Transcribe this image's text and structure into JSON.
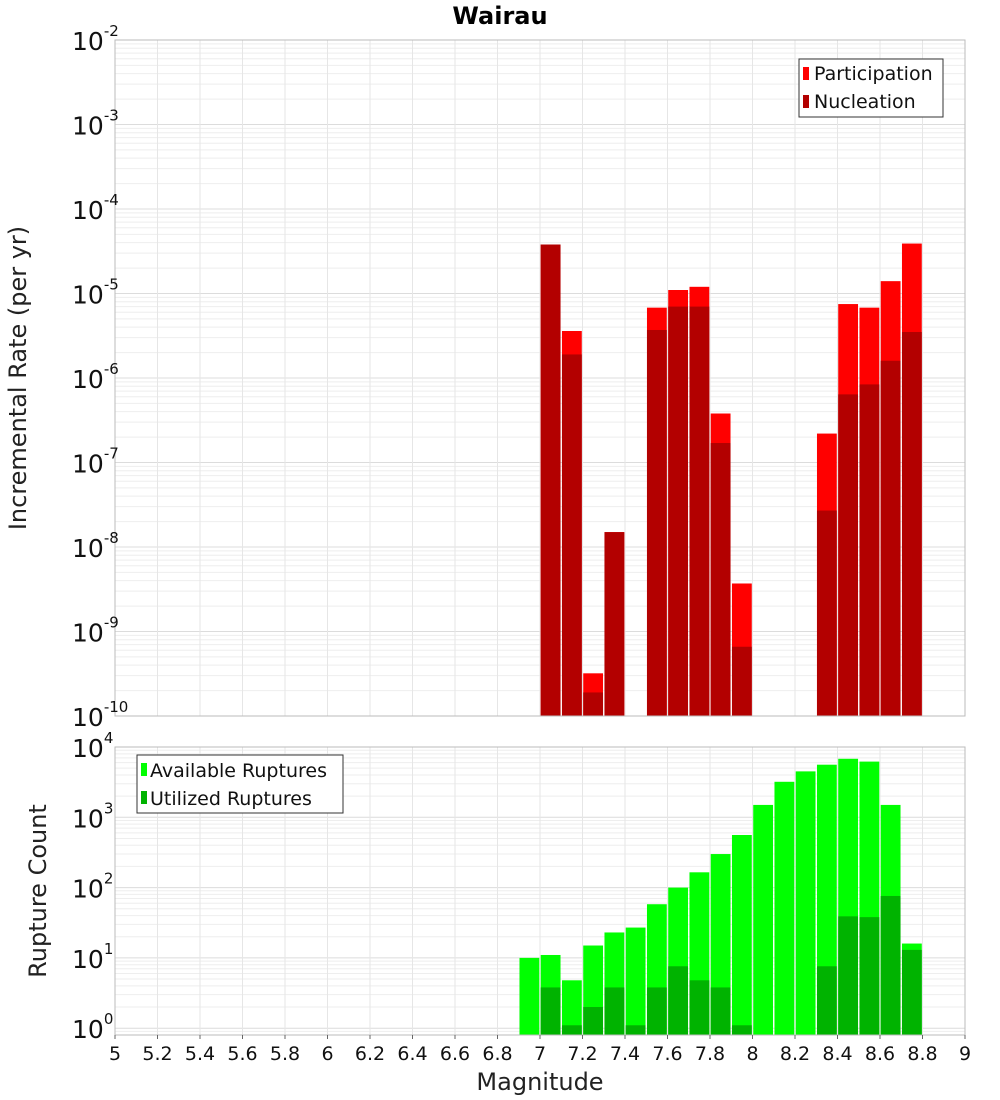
{
  "chart_data": [
    {
      "type": "bar",
      "title": "Wairau",
      "ylabel": "Incremental Rate (per yr)",
      "yscale": "log",
      "ylim": [
        1e-10,
        0.01
      ],
      "xlim": [
        5,
        9
      ],
      "grid": true,
      "legend": "top-right",
      "ytick_exponents": [
        "-10",
        "-9",
        "-8",
        "-7",
        "-6",
        "-5",
        "-4",
        "-3",
        "-2"
      ],
      "x": [
        7.05,
        7.15,
        7.25,
        7.35,
        7.55,
        7.65,
        7.75,
        7.85,
        7.95,
        8.35,
        8.45,
        8.55,
        8.65,
        8.75
      ],
      "series": [
        {
          "name": "Participation",
          "color": "#ff0000",
          "values": [
            3.8e-05,
            3.6e-06,
            3.2e-10,
            1.5e-08,
            6.8e-06,
            1.1e-05,
            1.2e-05,
            3.8e-07,
            3.7e-09,
            2.2e-07,
            7.5e-06,
            6.8e-06,
            1.4e-05,
            3.9e-05
          ]
        },
        {
          "name": "Nucleation",
          "color": "#b30000",
          "values": [
            3.8e-05,
            1.9e-06,
            1.9e-10,
            1.5e-08,
            3.7e-06,
            7e-06,
            7e-06,
            1.7e-07,
            6.6e-10,
            2.7e-08,
            6.4e-07,
            8.4e-07,
            1.6e-06,
            3.5e-06
          ]
        }
      ]
    },
    {
      "type": "bar",
      "ylabel": "Rupture Count",
      "xlabel": "Magnitude",
      "yscale": "log",
      "ylim": [
        0.8,
        10000
      ],
      "xlim": [
        5,
        9
      ],
      "grid": true,
      "legend": "top-left",
      "ytick_exponents": [
        "0",
        "1",
        "2",
        "3",
        "4"
      ],
      "xticks": [
        "5",
        "5.2",
        "5.4",
        "5.6",
        "5.8",
        "6",
        "6.2",
        "6.4",
        "6.6",
        "6.8",
        "7",
        "7.2",
        "7.4",
        "7.6",
        "7.8",
        "8",
        "8.2",
        "8.4",
        "8.6",
        "8.8",
        "9"
      ],
      "x": [
        6.95,
        7.05,
        7.15,
        7.25,
        7.35,
        7.45,
        7.55,
        7.65,
        7.75,
        7.85,
        7.95,
        8.05,
        8.15,
        8.25,
        8.35,
        8.45,
        8.55,
        8.65,
        8.75
      ],
      "series": [
        {
          "name": "Available Ruptures",
          "color": "#00ff00",
          "values": [
            10,
            11,
            4.8,
            15,
            23,
            27,
            58,
            100,
            165,
            300,
            560,
            1500,
            3200,
            4500,
            5600,
            6800,
            6200,
            1500,
            16
          ]
        },
        {
          "name": "Utilized Ruptures",
          "color": "#00b300",
          "values": [
            0,
            3.8,
            1.1,
            2,
            3.8,
            1.1,
            3.8,
            7.6,
            4.8,
            3.8,
            1.1,
            0,
            0,
            0,
            7.6,
            39,
            38,
            76,
            13
          ]
        }
      ]
    }
  ]
}
